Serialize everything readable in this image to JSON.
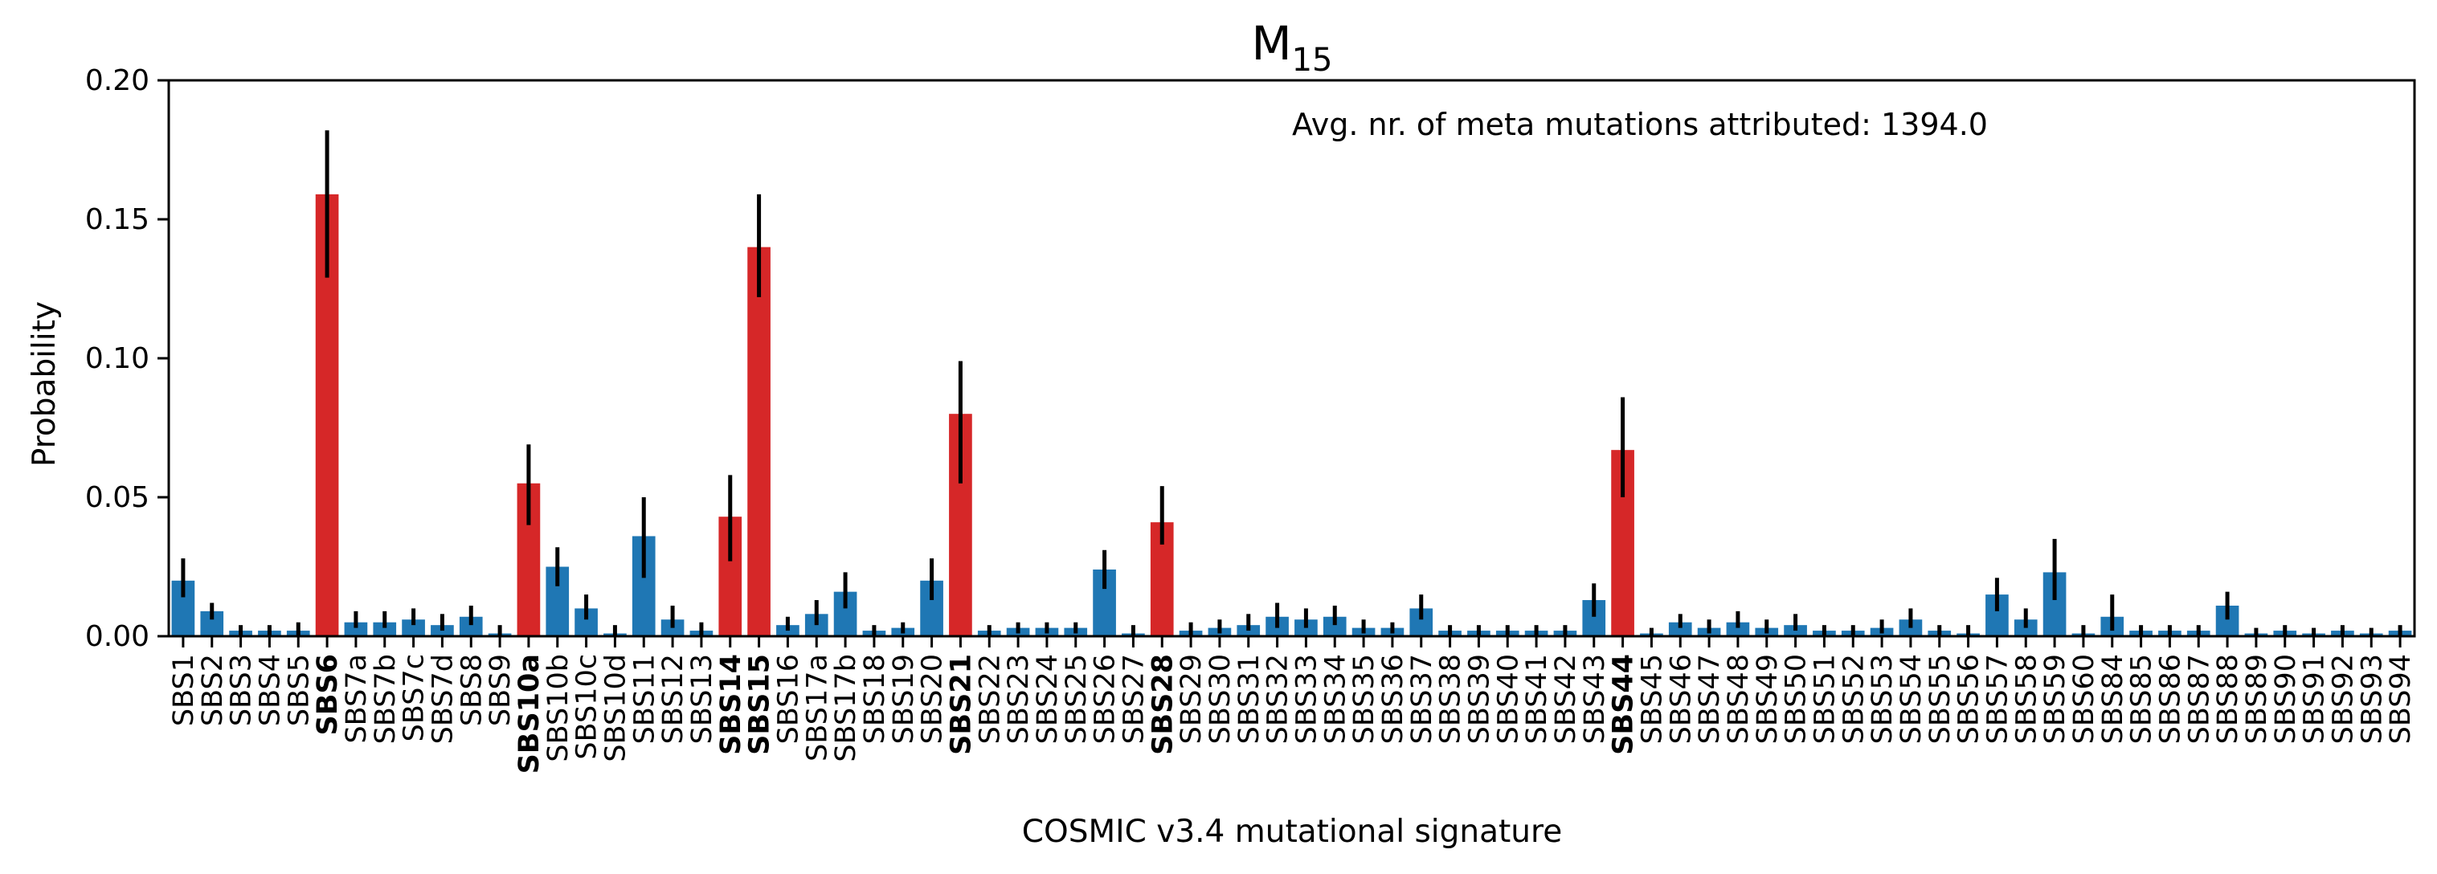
{
  "chart_data": {
    "type": "bar",
    "title": "M",
    "title_subscript": "15",
    "xlabel": "COSMIC v3.4 mutational signature",
    "ylabel": "Probability",
    "annotation": "Avg. nr. of meta mutations attributed: 1394.0",
    "ylim": [
      0,
      0.2
    ],
    "yticks": [
      "0.00",
      "0.05",
      "0.10",
      "0.15",
      "0.20"
    ],
    "grid": false,
    "colors": {
      "default": "#1f77b4",
      "highlight": "#d62728",
      "error": "#000000"
    },
    "categories": [
      "SBS1",
      "SBS2",
      "SBS3",
      "SBS4",
      "SBS5",
      "SBS6",
      "SBS7a",
      "SBS7b",
      "SBS7c",
      "SBS7d",
      "SBS8",
      "SBS9",
      "SBS10a",
      "SBS10b",
      "SBS10c",
      "SBS10d",
      "SBS11",
      "SBS12",
      "SBS13",
      "SBS14",
      "SBS15",
      "SBS16",
      "SBS17a",
      "SBS17b",
      "SBS18",
      "SBS19",
      "SBS20",
      "SBS21",
      "SBS22",
      "SBS23",
      "SBS24",
      "SBS25",
      "SBS26",
      "SBS27",
      "SBS28",
      "SBS29",
      "SBS30",
      "SBS31",
      "SBS32",
      "SBS33",
      "SBS34",
      "SBS35",
      "SBS36",
      "SBS37",
      "SBS38",
      "SBS39",
      "SBS40",
      "SBS41",
      "SBS42",
      "SBS43",
      "SBS44",
      "SBS45",
      "SBS46",
      "SBS47",
      "SBS48",
      "SBS49",
      "SBS50",
      "SBS51",
      "SBS52",
      "SBS53",
      "SBS54",
      "SBS55",
      "SBS56",
      "SBS57",
      "SBS58",
      "SBS59",
      "SBS60",
      "SBS84",
      "SBS85",
      "SBS86",
      "SBS87",
      "SBS88",
      "SBS89",
      "SBS90",
      "SBS91",
      "SBS92",
      "SBS93",
      "SBS94"
    ],
    "values": [
      0.02,
      0.009,
      0.002,
      0.002,
      0.002,
      0.159,
      0.005,
      0.005,
      0.006,
      0.004,
      0.007,
      0.001,
      0.055,
      0.025,
      0.01,
      0.001,
      0.036,
      0.006,
      0.002,
      0.043,
      0.14,
      0.004,
      0.008,
      0.016,
      0.002,
      0.003,
      0.02,
      0.08,
      0.002,
      0.003,
      0.003,
      0.003,
      0.024,
      0.001,
      0.041,
      0.002,
      0.003,
      0.004,
      0.007,
      0.006,
      0.007,
      0.003,
      0.003,
      0.01,
      0.002,
      0.002,
      0.002,
      0.002,
      0.002,
      0.013,
      0.067,
      0.001,
      0.005,
      0.003,
      0.005,
      0.003,
      0.004,
      0.002,
      0.002,
      0.003,
      0.006,
      0.002,
      0.001,
      0.015,
      0.006,
      0.023,
      0.001,
      0.007,
      0.002,
      0.002,
      0.002,
      0.011,
      0.001,
      0.002,
      0.001,
      0.002,
      0.001,
      0.002
    ],
    "error_low": [
      0.014,
      0.006,
      0.0,
      0.0,
      0.0,
      0.129,
      0.003,
      0.003,
      0.004,
      0.002,
      0.004,
      0.0,
      0.04,
      0.018,
      0.006,
      0.0,
      0.021,
      0.003,
      0.0,
      0.027,
      0.122,
      0.002,
      0.004,
      0.01,
      0.0,
      0.001,
      0.013,
      0.055,
      0.0,
      0.001,
      0.001,
      0.001,
      0.017,
      0.0,
      0.033,
      0.0,
      0.001,
      0.002,
      0.003,
      0.003,
      0.004,
      0.001,
      0.001,
      0.006,
      0.0,
      0.0,
      0.0,
      0.0,
      0.0,
      0.007,
      0.05,
      0.0,
      0.003,
      0.001,
      0.003,
      0.001,
      0.002,
      0.0,
      0.0,
      0.001,
      0.003,
      0.0,
      0.0,
      0.009,
      0.003,
      0.013,
      0.0,
      0.002,
      0.0,
      0.0,
      0.0,
      0.006,
      0.0,
      0.0,
      0.0,
      0.0,
      0.0,
      0.0
    ],
    "error_high": [
      0.028,
      0.012,
      0.004,
      0.004,
      0.005,
      0.182,
      0.009,
      0.009,
      0.01,
      0.008,
      0.011,
      0.004,
      0.069,
      0.032,
      0.015,
      0.004,
      0.05,
      0.011,
      0.005,
      0.058,
      0.159,
      0.007,
      0.013,
      0.023,
      0.004,
      0.005,
      0.028,
      0.099,
      0.004,
      0.005,
      0.005,
      0.005,
      0.031,
      0.004,
      0.054,
      0.005,
      0.006,
      0.008,
      0.012,
      0.01,
      0.011,
      0.006,
      0.005,
      0.015,
      0.004,
      0.004,
      0.004,
      0.004,
      0.004,
      0.019,
      0.086,
      0.003,
      0.008,
      0.006,
      0.009,
      0.006,
      0.008,
      0.004,
      0.004,
      0.006,
      0.01,
      0.004,
      0.004,
      0.021,
      0.01,
      0.035,
      0.004,
      0.015,
      0.004,
      0.004,
      0.004,
      0.016,
      0.003,
      0.004,
      0.003,
      0.004,
      0.003,
      0.004
    ],
    "highlighted": [
      "SBS6",
      "SBS10a",
      "SBS14",
      "SBS15",
      "SBS21",
      "SBS28",
      "SBS44"
    ]
  }
}
